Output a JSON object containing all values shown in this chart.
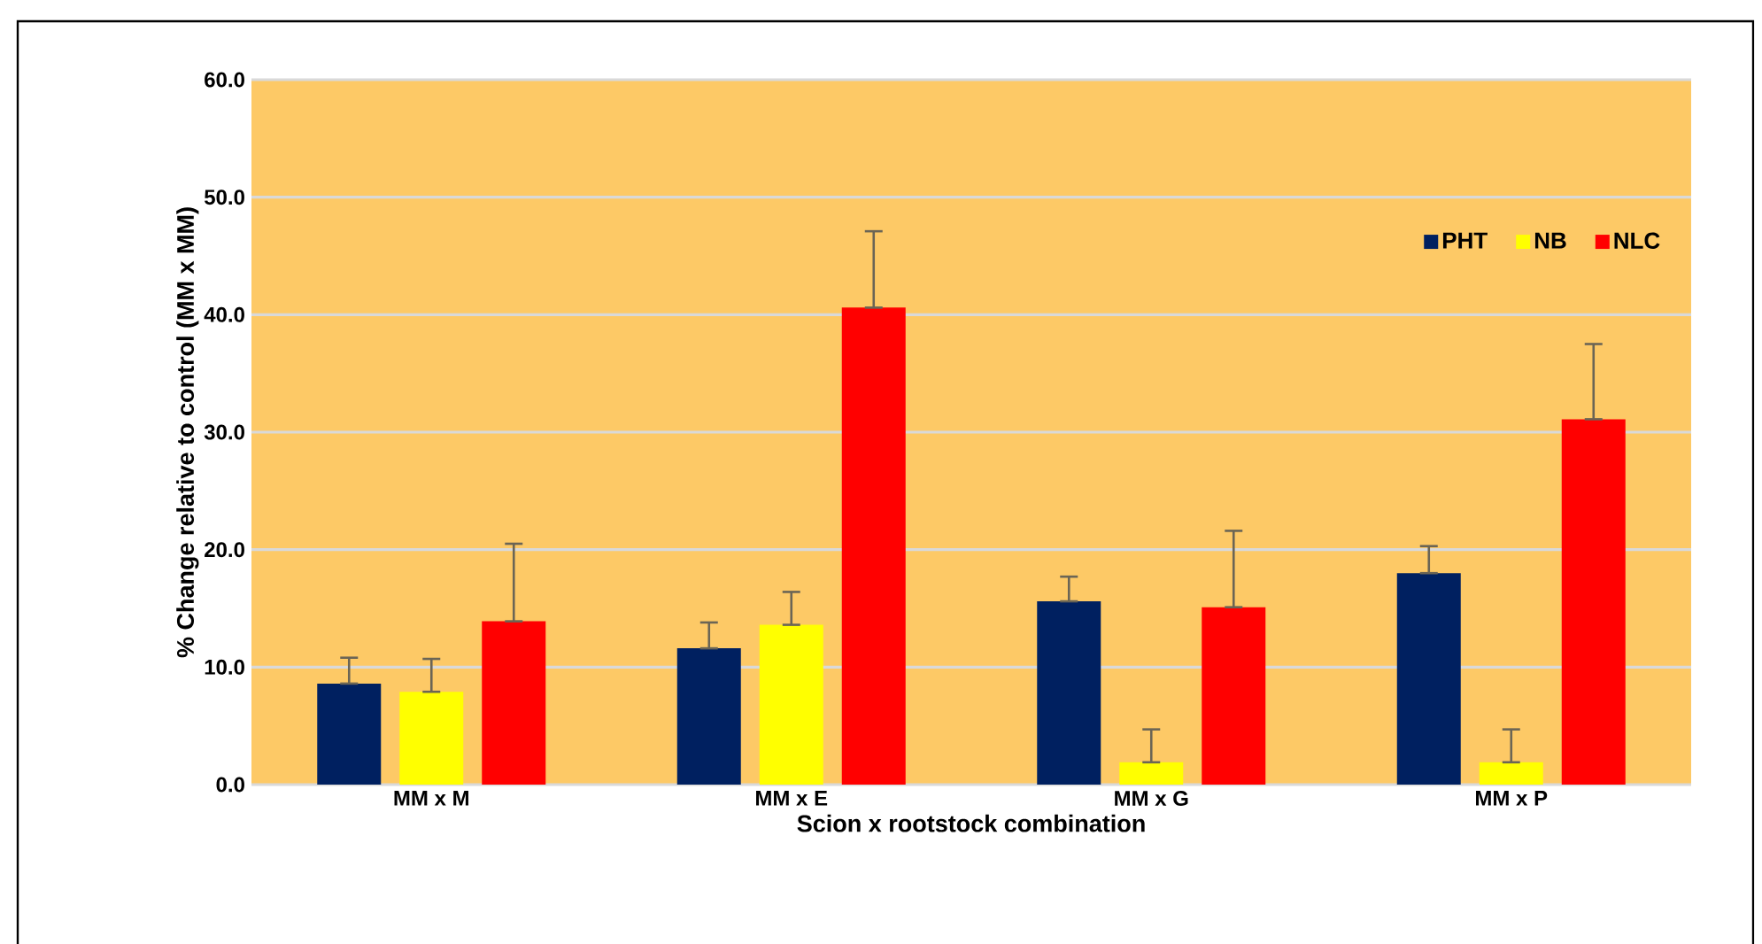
{
  "chart_data": {
    "type": "bar",
    "xlabel": "Scion x rootstock combination",
    "ylabel": "% Change relative to control (MM x MM)",
    "categories": [
      "MM x M",
      "MM x E",
      "MM x G",
      "MM x P"
    ],
    "series": [
      {
        "name": "PHT",
        "color": "#002060",
        "values": [
          8.6,
          11.6,
          15.6,
          18.0
        ],
        "errors": [
          [
            8.6,
            10.8
          ],
          [
            11.6,
            13.8
          ],
          [
            15.6,
            17.7
          ],
          [
            18.0,
            20.3
          ]
        ]
      },
      {
        "name": "NB",
        "color": "#ffff00",
        "values": [
          7.9,
          13.6,
          1.9,
          1.9
        ],
        "errors": [
          [
            7.9,
            10.7
          ],
          [
            13.6,
            16.4
          ],
          [
            1.9,
            4.7
          ],
          [
            1.9,
            4.7
          ]
        ]
      },
      {
        "name": "NLC",
        "color": "#ff0000",
        "values": [
          13.9,
          40.6,
          15.1,
          31.1
        ],
        "errors": [
          [
            13.9,
            20.5
          ],
          [
            40.6,
            47.1
          ],
          [
            15.1,
            21.6
          ],
          [
            31.1,
            37.5
          ]
        ]
      }
    ],
    "ylim": [
      0,
      60
    ],
    "yticks": [
      {
        "value": 0,
        "label": "0.0"
      },
      {
        "value": 10,
        "label": "10.0"
      },
      {
        "value": 20,
        "label": "20.0"
      },
      {
        "value": 30,
        "label": "30.0"
      },
      {
        "value": 40,
        "label": "40.0"
      },
      {
        "value": 50,
        "label": "50.0"
      },
      {
        "value": 60,
        "label": "60.0"
      }
    ],
    "grid": "y",
    "legend": "top right"
  }
}
